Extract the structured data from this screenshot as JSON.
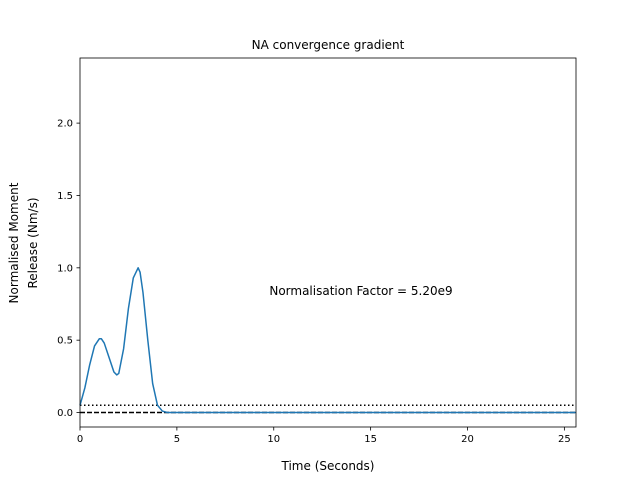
{
  "chart_data": {
    "type": "line",
    "title": "NA convergence gradient",
    "xlabel": "Time (Seconds)",
    "ylabel_lines": [
      "Normalised Moment",
      "Release (Nm/s)"
    ],
    "xlim": [
      0,
      25.6
    ],
    "ylim": [
      -0.1,
      2.45
    ],
    "xticks": [
      0,
      5,
      10,
      15,
      20,
      25
    ],
    "yticks": [
      0.0,
      0.5,
      1.0,
      1.5,
      2.0
    ],
    "xtick_labels": [
      "0",
      "5",
      "10",
      "15",
      "20",
      "25"
    ],
    "ytick_labels": [
      "0.0",
      "0.5",
      "1.0",
      "1.5",
      "2.0"
    ],
    "annotation": "Normalisation Factor = 5.20e9",
    "grid": false,
    "series": [
      {
        "color": "#1f77b4",
        "x": [
          0,
          0.25,
          0.5,
          0.75,
          1.0,
          1.1,
          1.25,
          1.5,
          1.75,
          1.9,
          2.0,
          2.25,
          2.5,
          2.75,
          3.0,
          3.1,
          3.25,
          3.5,
          3.75,
          4.0,
          4.25,
          4.5,
          4.75,
          5.0,
          6.0,
          8.0,
          10.0,
          15.0,
          20.0,
          25.0,
          25.6
        ],
        "y": [
          0.05,
          0.17,
          0.33,
          0.46,
          0.51,
          0.51,
          0.48,
          0.38,
          0.28,
          0.26,
          0.27,
          0.44,
          0.72,
          0.93,
          1.0,
          0.97,
          0.83,
          0.5,
          0.2,
          0.05,
          0.01,
          0.0,
          0.0,
          0.0,
          0.0,
          0.0,
          0.0,
          0.0,
          0.0,
          0.0,
          0.0
        ]
      }
    ],
    "reference_lines": [
      {
        "y": 0.05,
        "style": "dotted",
        "color": "#000000"
      },
      {
        "y": 0.0,
        "style": "dashed",
        "color": "#000000"
      }
    ]
  }
}
